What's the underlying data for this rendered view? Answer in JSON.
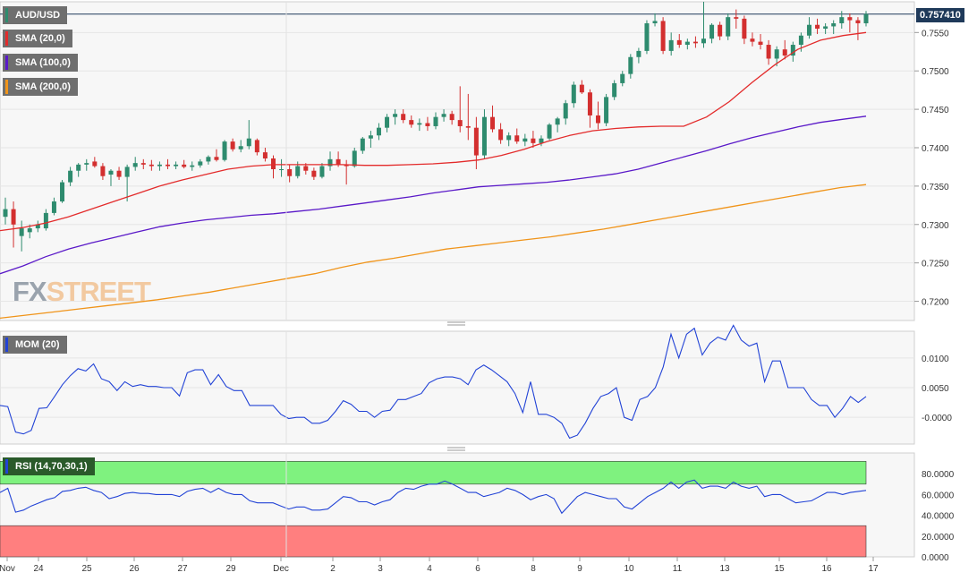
{
  "symbol": "AUD/USD",
  "last_price": "0.757410",
  "price_panel": {
    "indicators": [
      {
        "label": "SMA (20,0)",
        "color": "#e32b2b"
      },
      {
        "label": "SMA (100,0)",
        "color": "#5a19c8"
      },
      {
        "label": "SMA (200,0)",
        "color": "#f0941a"
      }
    ],
    "y_ticks": [
      "0.7550",
      "0.7500",
      "0.7450",
      "0.7400",
      "0.7350",
      "0.7300",
      "0.7250",
      "0.7200"
    ]
  },
  "mom_panel": {
    "label": "MOM (20)",
    "color": "#2243d6",
    "y_ticks": [
      "0.0100",
      "0.0050",
      "-0.0000"
    ]
  },
  "rsi_panel": {
    "label": "RSI (14,70,30,1)",
    "color": "#2243d6",
    "y_ticks": [
      "80.0000",
      "60.0000",
      "40.0000",
      "20.0000",
      "0.0000"
    ]
  },
  "x_ticks": [
    "Nov",
    "24",
    "25",
    "26",
    "27",
    "29",
    "Dec",
    "2",
    "3",
    "4",
    "6",
    "8",
    "9",
    "10",
    "11",
    "13",
    "15",
    "16",
    "17"
  ],
  "colors": {
    "up": "#2e8b6e",
    "down": "#d32f2f",
    "grid": "#e6e6e6",
    "bg": "#f7f7f7",
    "rsi_over": "#7ff27f",
    "rsi_under": "#ff7f7f"
  },
  "watermark": {
    "part1": "FX",
    "part2": "STREET"
  },
  "chart_data": [
    {
      "type": "candlestick",
      "title": "AUD/USD",
      "ylim": [
        0.7175,
        0.759
      ],
      "candles": [
        [
          0.731,
          0.7335,
          0.73,
          0.732
        ],
        [
          0.732,
          0.733,
          0.727,
          0.73
        ],
        [
          0.7285,
          0.7305,
          0.7265,
          0.7295
        ],
        [
          0.729,
          0.73,
          0.7282,
          0.7295
        ],
        [
          0.7295,
          0.7305,
          0.729,
          0.73
        ],
        [
          0.7295,
          0.732,
          0.7292,
          0.7315
        ],
        [
          0.7315,
          0.7335,
          0.7312,
          0.733
        ],
        [
          0.733,
          0.7358,
          0.7328,
          0.7355
        ],
        [
          0.7355,
          0.7375,
          0.735,
          0.737
        ],
        [
          0.737,
          0.738,
          0.7362,
          0.7378
        ],
        [
          0.7378,
          0.7385,
          0.737,
          0.738
        ],
        [
          0.7382,
          0.7388,
          0.7374,
          0.7376
        ],
        [
          0.7376,
          0.738,
          0.7358,
          0.7363
        ],
        [
          0.7365,
          0.7372,
          0.735,
          0.737
        ],
        [
          0.737,
          0.7375,
          0.7358,
          0.7362
        ],
        [
          0.7362,
          0.7378,
          0.733,
          0.7375
        ],
        [
          0.7375,
          0.7388,
          0.737,
          0.738
        ],
        [
          0.738,
          0.7385,
          0.7372,
          0.7378
        ],
        [
          0.7378,
          0.7384,
          0.737,
          0.7376
        ],
        [
          0.7376,
          0.7382,
          0.737,
          0.7378
        ],
        [
          0.7378,
          0.7385,
          0.7372,
          0.7376
        ],
        [
          0.7376,
          0.7382,
          0.7372,
          0.7378
        ],
        [
          0.7378,
          0.7384,
          0.7373,
          0.7375
        ],
        [
          0.7375,
          0.7382,
          0.737,
          0.7377
        ],
        [
          0.7377,
          0.7385,
          0.7374,
          0.7382
        ],
        [
          0.7382,
          0.739,
          0.7378,
          0.7388
        ],
        [
          0.7388,
          0.7398,
          0.7382,
          0.7384
        ],
        [
          0.7384,
          0.741,
          0.7382,
          0.7408
        ],
        [
          0.7408,
          0.7412,
          0.7395,
          0.7398
        ],
        [
          0.7398,
          0.741,
          0.7394,
          0.7402
        ],
        [
          0.7402,
          0.7436,
          0.7398,
          0.7412
        ],
        [
          0.741,
          0.7412,
          0.739,
          0.7394
        ],
        [
          0.7394,
          0.74,
          0.7382,
          0.7386
        ],
        [
          0.7386,
          0.739,
          0.736,
          0.7372
        ],
        [
          0.7372,
          0.7385,
          0.7362,
          0.7372
        ],
        [
          0.7372,
          0.7378,
          0.7355,
          0.7363
        ],
        [
          0.7363,
          0.7382,
          0.736,
          0.7376
        ],
        [
          0.7376,
          0.738,
          0.7365,
          0.737
        ],
        [
          0.737,
          0.7374,
          0.7358,
          0.7362
        ],
        [
          0.7362,
          0.738,
          0.736,
          0.7376
        ],
        [
          0.7376,
          0.7395,
          0.737,
          0.7385
        ],
        [
          0.7385,
          0.7395,
          0.7375,
          0.7378
        ],
        [
          0.7378,
          0.7384,
          0.7352,
          0.7376
        ],
        [
          0.7376,
          0.74,
          0.7374,
          0.7396
        ],
        [
          0.7396,
          0.7414,
          0.7392,
          0.7412
        ],
        [
          0.7412,
          0.7422,
          0.74,
          0.7416
        ],
        [
          0.7416,
          0.7432,
          0.741,
          0.7426
        ],
        [
          0.7426,
          0.7444,
          0.742,
          0.744
        ],
        [
          0.744,
          0.745,
          0.743,
          0.7444
        ],
        [
          0.7444,
          0.745,
          0.7432,
          0.7436
        ],
        [
          0.7436,
          0.7442,
          0.7426,
          0.743
        ],
        [
          0.743,
          0.7438,
          0.7422,
          0.7432
        ],
        [
          0.7432,
          0.744,
          0.7422,
          0.7428
        ],
        [
          0.7428,
          0.7446,
          0.7424,
          0.744
        ],
        [
          0.744,
          0.745,
          0.7434,
          0.7444
        ],
        [
          0.7444,
          0.7448,
          0.743,
          0.7436
        ],
        [
          0.7436,
          0.748,
          0.742,
          0.7428
        ],
        [
          0.7428,
          0.747,
          0.741,
          0.7426
        ],
        [
          0.7426,
          0.744,
          0.7372,
          0.739
        ],
        [
          0.739,
          0.745,
          0.7385,
          0.744
        ],
        [
          0.744,
          0.7455,
          0.742,
          0.7424
        ],
        [
          0.7424,
          0.7432,
          0.7405,
          0.741
        ],
        [
          0.741,
          0.742,
          0.7402,
          0.7416
        ],
        [
          0.7416,
          0.7425,
          0.7405,
          0.7408
        ],
        [
          0.7408,
          0.7418,
          0.7402,
          0.7412
        ],
        [
          0.7412,
          0.7422,
          0.74,
          0.7406
        ],
        [
          0.7406,
          0.7416,
          0.7402,
          0.7412
        ],
        [
          0.7412,
          0.7432,
          0.741,
          0.743
        ],
        [
          0.743,
          0.744,
          0.742,
          0.7438
        ],
        [
          0.7438,
          0.7462,
          0.743,
          0.7458
        ],
        [
          0.7458,
          0.7486,
          0.7452,
          0.7482
        ],
        [
          0.7482,
          0.7488,
          0.747,
          0.7472
        ],
        [
          0.7472,
          0.7476,
          0.7426,
          0.7442
        ],
        [
          0.7442,
          0.746,
          0.7424,
          0.7432
        ],
        [
          0.7432,
          0.747,
          0.7428,
          0.7466
        ],
        [
          0.7466,
          0.7488,
          0.7462,
          0.7484
        ],
        [
          0.7484,
          0.75,
          0.748,
          0.7496
        ],
        [
          0.7496,
          0.7522,
          0.749,
          0.7518
        ],
        [
          0.7518,
          0.753,
          0.751,
          0.7526
        ],
        [
          0.7526,
          0.7566,
          0.7522,
          0.7562
        ],
        [
          0.7562,
          0.7575,
          0.7558,
          0.7565
        ],
        [
          0.7565,
          0.757,
          0.7522,
          0.7526
        ],
        [
          0.7526,
          0.755,
          0.752,
          0.754
        ],
        [
          0.754,
          0.7548,
          0.753,
          0.7534
        ],
        [
          0.7534,
          0.7542,
          0.7528,
          0.7538
        ],
        [
          0.7538,
          0.7545,
          0.753,
          0.7536
        ],
        [
          0.7536,
          0.759,
          0.753,
          0.7542
        ],
        [
          0.7542,
          0.7562,
          0.7536,
          0.756
        ],
        [
          0.756,
          0.7564,
          0.754,
          0.7545
        ],
        [
          0.7545,
          0.7575,
          0.754,
          0.757
        ],
        [
          0.757,
          0.758,
          0.7555,
          0.7568
        ],
        [
          0.7568,
          0.7572,
          0.7535,
          0.7542
        ],
        [
          0.7542,
          0.755,
          0.7532,
          0.7538
        ],
        [
          0.7538,
          0.7548,
          0.7528,
          0.7534
        ],
        [
          0.7534,
          0.754,
          0.7508,
          0.7516
        ],
        [
          0.7516,
          0.7532,
          0.7506,
          0.7528
        ],
        [
          0.7528,
          0.754,
          0.7515,
          0.752
        ],
        [
          0.752,
          0.7538,
          0.7512,
          0.7534
        ],
        [
          0.7534,
          0.755,
          0.7525,
          0.7546
        ],
        [
          0.7546,
          0.757,
          0.7542,
          0.756
        ],
        [
          0.756,
          0.7568,
          0.7548,
          0.7555
        ],
        [
          0.7555,
          0.7562,
          0.7548,
          0.7558
        ],
        [
          0.7558,
          0.7566,
          0.7548,
          0.7562
        ],
        [
          0.7562,
          0.7578,
          0.7555,
          0.757
        ],
        [
          0.757,
          0.7575,
          0.755,
          0.7566
        ],
        [
          0.7566,
          0.757,
          0.754,
          0.7562
        ],
        [
          0.7562,
          0.7578,
          0.7558,
          0.7574
        ]
      ],
      "sma20": [
        0.7292,
        0.7296,
        0.7302,
        0.731,
        0.732,
        0.733,
        0.734,
        0.735,
        0.7358,
        0.7365,
        0.7372,
        0.7376,
        0.7378,
        0.7378,
        0.7378,
        0.7378,
        0.7377,
        0.7377,
        0.7378,
        0.7379,
        0.7381,
        0.7384,
        0.739,
        0.7398,
        0.7408,
        0.7416,
        0.7422,
        0.7425,
        0.7427,
        0.7428,
        0.7428,
        0.744,
        0.746,
        0.7485,
        0.7508,
        0.7528,
        0.754,
        0.7546,
        0.755
      ],
      "sma100": [
        0.7236,
        0.7246,
        0.7258,
        0.7268,
        0.7276,
        0.7283,
        0.729,
        0.7297,
        0.7302,
        0.7306,
        0.7309,
        0.7312,
        0.7314,
        0.7317,
        0.732,
        0.7324,
        0.7328,
        0.7332,
        0.7336,
        0.7341,
        0.7345,
        0.7349,
        0.7351,
        0.7353,
        0.7355,
        0.7358,
        0.7362,
        0.7366,
        0.7372,
        0.738,
        0.7388,
        0.7396,
        0.7405,
        0.7413,
        0.742,
        0.7427,
        0.7433,
        0.7437,
        0.7441
      ],
      "sma200": [
        0.7178,
        0.7182,
        0.7186,
        0.719,
        0.7194,
        0.7198,
        0.7202,
        0.7207,
        0.7212,
        0.7218,
        0.7224,
        0.723,
        0.7236,
        0.7244,
        0.7251,
        0.7256,
        0.7262,
        0.7268,
        0.7272,
        0.7276,
        0.728,
        0.7284,
        0.7289,
        0.7294,
        0.73,
        0.7306,
        0.7312,
        0.7318,
        0.7324,
        0.733,
        0.7336,
        0.7342,
        0.7348,
        0.7352
      ]
    },
    {
      "type": "line",
      "title": "MOM (20)",
      "ylim": [
        -0.0045,
        0.0145
      ],
      "values": [
        0.002,
        0.0018,
        -0.0025,
        -0.0028,
        -0.0022,
        0.0015,
        0.0016,
        0.0035,
        0.0055,
        0.007,
        0.0082,
        0.0078,
        0.009,
        0.0065,
        0.006,
        0.0045,
        0.006,
        0.0052,
        0.0055,
        0.0052,
        0.0052,
        0.005,
        0.005,
        0.0036,
        0.0075,
        0.008,
        0.008,
        0.0055,
        0.0072,
        0.0052,
        0.0045,
        0.0045,
        0.002,
        0.002,
        0.002,
        0.002,
        0.0005,
        -0.0002,
        0.0,
        0.0,
        -0.001,
        -0.001,
        -0.0005,
        0.001,
        0.0028,
        0.0022,
        0.001,
        0.001,
        0.0,
        0.001,
        0.0012,
        0.003,
        0.003,
        0.0035,
        0.004,
        0.0058,
        0.0065,
        0.0068,
        0.0068,
        0.0065,
        0.0055,
        0.008,
        0.0088,
        0.008,
        0.007,
        0.006,
        0.004,
        0.0008,
        0.006,
        0.0005,
        0.0005,
        0.0,
        -0.001,
        -0.0035,
        -0.003,
        -0.001,
        0.0015,
        0.0035,
        0.004,
        0.005,
        0.0,
        -0.0005,
        0.003,
        0.0035,
        0.005,
        0.0085,
        0.014,
        0.01,
        0.014,
        0.015,
        0.0105,
        0.0125,
        0.0135,
        0.013,
        0.0155,
        0.013,
        0.012,
        0.0125,
        0.006,
        0.0095,
        0.0095,
        0.005,
        0.005,
        0.005,
        0.003,
        0.002,
        0.002,
        0.0,
        0.0015,
        0.0035,
        0.0025,
        0.0035
      ]
    },
    {
      "type": "line",
      "title": "RSI (14,70,30,1)",
      "ylim": [
        0,
        100
      ],
      "bands": {
        "overbought": 70,
        "oversold": 30
      },
      "values": [
        62,
        66,
        43,
        45,
        49,
        52,
        55,
        57,
        63,
        64,
        66,
        67,
        64,
        62,
        56,
        58,
        61,
        62,
        61,
        61,
        60,
        60,
        60,
        58,
        63,
        65,
        66,
        62,
        66,
        62,
        60,
        60,
        54,
        52,
        52,
        52,
        49,
        46,
        48,
        48,
        45,
        45,
        46,
        52,
        58,
        57,
        53,
        53,
        50,
        53,
        55,
        62,
        66,
        65,
        68,
        70,
        70,
        73,
        70,
        66,
        62,
        62,
        58,
        60,
        62,
        66,
        64,
        60,
        55,
        58,
        60,
        56,
        42,
        50,
        58,
        62,
        60,
        58,
        56,
        56,
        48,
        46,
        52,
        58,
        62,
        66,
        72,
        66,
        72,
        74,
        66,
        68,
        68,
        66,
        72,
        68,
        66,
        68,
        58,
        60,
        60,
        56,
        52,
        53,
        54,
        58,
        62,
        62,
        60,
        62,
        63,
        64
      ]
    }
  ]
}
